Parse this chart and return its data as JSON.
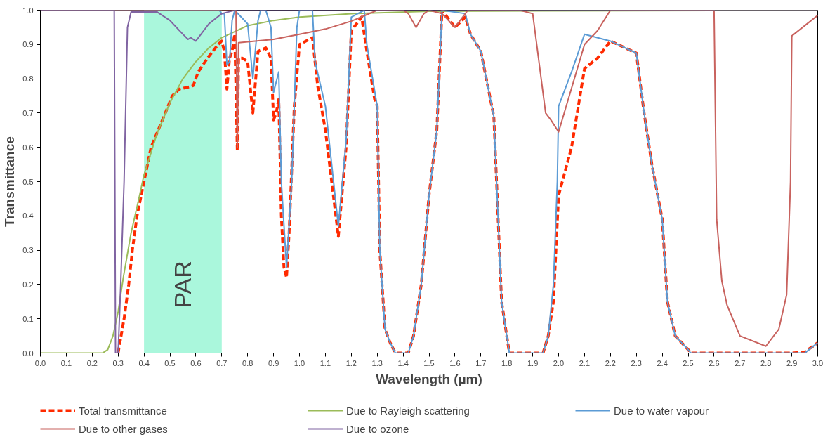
{
  "chart_data": {
    "type": "line",
    "xlabel": "Wavelength (µm)",
    "ylabel": "Transmittance",
    "xlim": [
      0,
      3
    ],
    "ylim": [
      0,
      1
    ],
    "xticks": [
      {
        "value": 0,
        "label": "0.0"
      },
      {
        "value": 0.1,
        "label": "0.1"
      },
      {
        "value": 0.2,
        "label": "0.2"
      },
      {
        "value": 0.3,
        "label": "0.3"
      },
      {
        "value": 0.4,
        "label": "0.4"
      },
      {
        "value": 0.5,
        "label": "0.5"
      },
      {
        "value": 0.6,
        "label": "0.6"
      },
      {
        "value": 0.7,
        "label": "0.7"
      },
      {
        "value": 0.8,
        "label": "0.8"
      },
      {
        "value": 0.9,
        "label": "0.9"
      },
      {
        "value": 1,
        "label": "1.0"
      },
      {
        "value": 1.1,
        "label": "1.1"
      },
      {
        "value": 1.2,
        "label": "1.2"
      },
      {
        "value": 1.3,
        "label": "1.3"
      },
      {
        "value": 1.4,
        "label": "1.4"
      },
      {
        "value": 1.5,
        "label": "1.5"
      },
      {
        "value": 1.6,
        "label": "1.6"
      },
      {
        "value": 1.7,
        "label": "1.7"
      },
      {
        "value": 1.8,
        "label": "1.8"
      },
      {
        "value": 1.9,
        "label": "1.9"
      },
      {
        "value": 2,
        "label": "2.0"
      },
      {
        "value": 2.1,
        "label": "2.1"
      },
      {
        "value": 2.2,
        "label": "2.2"
      },
      {
        "value": 2.3,
        "label": "2.3"
      },
      {
        "value": 2.4,
        "label": "2.4"
      },
      {
        "value": 2.5,
        "label": "2.5"
      },
      {
        "value": 2.6,
        "label": "2.6"
      },
      {
        "value": 2.7,
        "label": "2.7"
      },
      {
        "value": 2.8,
        "label": "2.8"
      },
      {
        "value": 2.9,
        "label": "2.9"
      },
      {
        "value": 3,
        "label": "3.0"
      }
    ],
    "yticks": [
      {
        "value": 0,
        "label": "0.0"
      },
      0.1,
      0.2,
      0.3,
      0.4,
      0.5,
      0.6,
      0.7,
      0.8,
      0.9,
      {
        "value": 1,
        "label": "1.0"
      }
    ],
    "grid": false,
    "legend": "bottom",
    "marker": "none",
    "bands": [
      {
        "axis": "x",
        "from": 0.4,
        "to": 0.7,
        "label": "PAR",
        "color": "#aaf7dc"
      }
    ],
    "series": [
      {
        "name": "Total transmittance",
        "color": "#ff2a00",
        "line_style": "dashed",
        "x": [
          0.3,
          0.323,
          0.341,
          0.355,
          0.373,
          0.4,
          0.427,
          0.482,
          0.509,
          0.536,
          0.568,
          0.59,
          0.609,
          0.645,
          0.686,
          0.7,
          0.71,
          0.72,
          0.73,
          0.74,
          0.75,
          0.76,
          0.765,
          0.78,
          0.8,
          0.82,
          0.84,
          0.87,
          0.89,
          0.9,
          0.91,
          0.92,
          0.93,
          0.94,
          0.95,
          0.96,
          0.98,
          1.0,
          1.05,
          1.07,
          1.1,
          1.15,
          1.18,
          1.2,
          1.24,
          1.26,
          1.29,
          1.3,
          1.31,
          1.33,
          1.35,
          1.37,
          1.42,
          1.44,
          1.47,
          1.5,
          1.53,
          1.55,
          1.6,
          1.64,
          1.66,
          1.7,
          1.75,
          1.78,
          1.8,
          1.81,
          1.94,
          1.96,
          1.98,
          2.0,
          2.05,
          2.1,
          2.15,
          2.2,
          2.3,
          2.33,
          2.36,
          2.4,
          2.42,
          2.45,
          2.5,
          2.51,
          2.9,
          2.95,
          3.0
        ],
        "values": [
          0,
          0.1,
          0.2,
          0.3,
          0.4,
          0.5,
          0.6,
          0.7,
          0.75,
          0.77,
          0.775,
          0.78,
          0.82,
          0.86,
          0.9,
          0.91,
          0.88,
          0.77,
          0.86,
          0.88,
          0.93,
          0.59,
          0.86,
          0.86,
          0.85,
          0.7,
          0.88,
          0.89,
          0.86,
          0.68,
          0.7,
          0.74,
          0.4,
          0.25,
          0.22,
          0.35,
          0.72,
          0.9,
          0.92,
          0.78,
          0.65,
          0.34,
          0.6,
          0.94,
          0.98,
          0.88,
          0.74,
          0.72,
          0.3,
          0.07,
          0.03,
          0,
          0,
          0.05,
          0.2,
          0.46,
          0.65,
          1.0,
          0.95,
          0.98,
          0.93,
          0.88,
          0.69,
          0.15,
          0.05,
          0,
          0,
          0.05,
          0.15,
          0.46,
          0.6,
          0.83,
          0.86,
          0.91,
          0.875,
          0.7,
          0.55,
          0.39,
          0.15,
          0.05,
          0.01,
          0,
          0,
          0.003,
          0.03
        ]
      },
      {
        "name": "Due to Rayleigh scattering",
        "color": "#9bbb59",
        "line_style": "solid",
        "x": [
          0,
          0.24,
          0.26,
          0.28,
          0.3,
          0.32,
          0.35,
          0.38,
          0.4,
          0.45,
          0.5,
          0.55,
          0.6,
          0.65,
          0.7,
          0.8,
          0.9,
          1.0,
          1.2,
          1.5,
          3.0
        ],
        "values": [
          0,
          0,
          0.01,
          0.05,
          0.12,
          0.22,
          0.35,
          0.45,
          0.52,
          0.64,
          0.73,
          0.8,
          0.85,
          0.89,
          0.92,
          0.955,
          0.97,
          0.98,
          0.99,
          0.997,
          1.0
        ]
      },
      {
        "name": "Due to water vapour",
        "color": "#5b9bd5",
        "line_style": "solid",
        "x": [
          0,
          0.69,
          0.7,
          0.71,
          0.72,
          0.73,
          0.74,
          0.75,
          0.8,
          0.82,
          0.84,
          0.85,
          0.87,
          0.89,
          0.9,
          0.92,
          0.93,
          0.95,
          0.97,
          0.99,
          1.0,
          1.05,
          1.06,
          1.1,
          1.15,
          1.18,
          1.2,
          1.25,
          1.26,
          1.3,
          1.31,
          1.33,
          1.35,
          1.37,
          1.42,
          1.44,
          1.47,
          1.5,
          1.53,
          1.55,
          1.64,
          1.66,
          1.7,
          1.75,
          1.78,
          1.8,
          1.81,
          1.94,
          1.96,
          1.98,
          1.995,
          2.0,
          2.05,
          2.1,
          2.2,
          2.3,
          2.33,
          2.36,
          2.4,
          2.42,
          2.45,
          2.5,
          2.51,
          2.95,
          3.0
        ],
        "values": [
          1,
          1,
          0.99,
          0.99,
          0.84,
          0.85,
          0.97,
          1.0,
          0.96,
          0.8,
          0.97,
          1.0,
          1.0,
          0.95,
          0.76,
          0.82,
          0.5,
          0.25,
          0.5,
          0.95,
          1.0,
          1.0,
          0.85,
          0.72,
          0.37,
          0.62,
          0.98,
          1.0,
          0.9,
          0.72,
          0.3,
          0.07,
          0.03,
          0,
          0,
          0.05,
          0.2,
          0.46,
          0.65,
          1.0,
          0.99,
          0.93,
          0.88,
          0.69,
          0.15,
          0.05,
          0,
          0,
          0.05,
          0.2,
          0.5,
          0.72,
          0.82,
          0.93,
          0.91,
          0.875,
          0.7,
          0.55,
          0.39,
          0.15,
          0.05,
          0.01,
          0,
          0,
          0.03
        ]
      },
      {
        "name": "Due to other gases",
        "color": "#c8625e",
        "line_style": "solid",
        "x": [
          0,
          0.755,
          0.76,
          0.765,
          0.9,
          1.0,
          1.1,
          1.2,
          1.3,
          1.4,
          1.42,
          1.45,
          1.48,
          1.5,
          1.55,
          1.6,
          1.65,
          1.85,
          1.9,
          1.95,
          1.97,
          2.0,
          2.1,
          2.15,
          2.2,
          2.6,
          2.61,
          2.63,
          2.65,
          2.7,
          2.8,
          2.85,
          2.88,
          2.895,
          2.9,
          3.0
        ],
        "values": [
          1,
          1,
          0.6,
          0.905,
          0.915,
          0.93,
          0.945,
          0.968,
          1.0,
          1.0,
          0.99,
          0.95,
          0.99,
          1.0,
          0.99,
          0.95,
          1.0,
          1.0,
          0.99,
          0.7,
          0.68,
          0.645,
          0.9,
          0.94,
          1.0,
          1.0,
          0.39,
          0.21,
          0.14,
          0.05,
          0.02,
          0.07,
          0.17,
          0.5,
          0.925,
          0.985
        ]
      },
      {
        "name": "Due to ozone",
        "color": "#8064a2",
        "line_style": "solid",
        "x": [
          0,
          0.285,
          0.29,
          0.3,
          0.31,
          0.323,
          0.336,
          0.35,
          0.45,
          0.5,
          0.55,
          0.57,
          0.58,
          0.6,
          0.65,
          0.7,
          0.75,
          3.0
        ],
        "values": [
          1,
          1,
          0,
          0,
          0.2,
          0.5,
          0.95,
          0.995,
          0.995,
          0.97,
          0.93,
          0.915,
          0.92,
          0.91,
          0.96,
          0.99,
          1.0,
          1.0
        ]
      }
    ]
  }
}
